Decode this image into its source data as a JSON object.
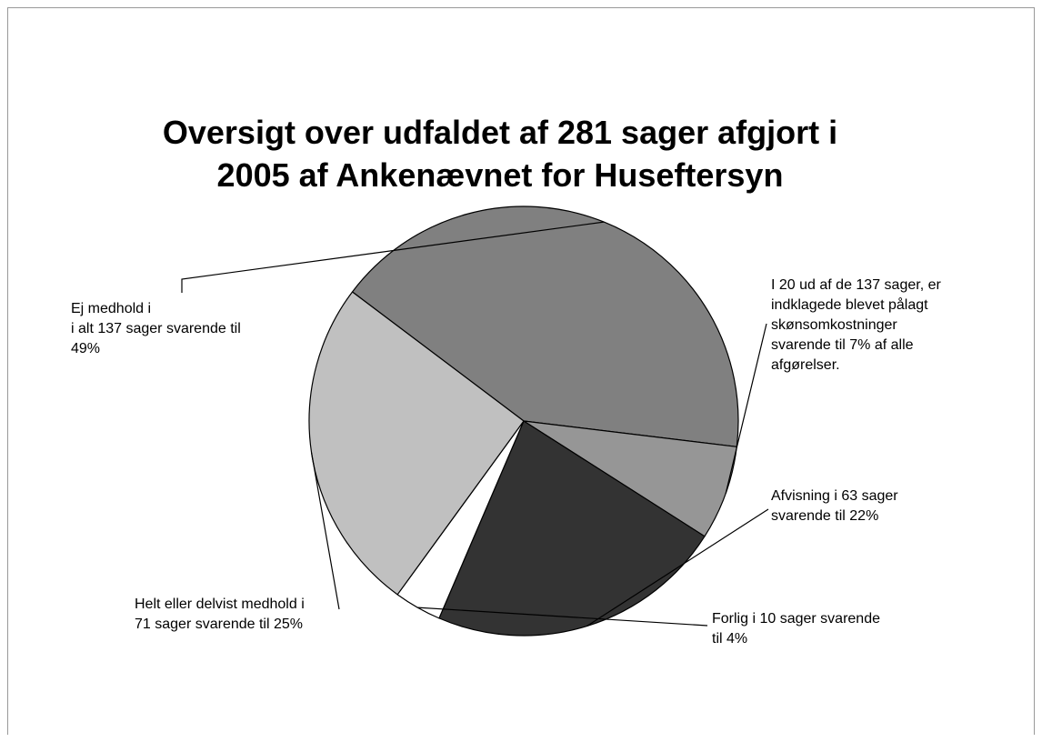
{
  "chart_data": {
    "type": "pie",
    "title_lines": [
      "Oversigt over udfaldet af 281 sager afgjort i",
      "2005 af Ankenævnet for Huseftersyn"
    ],
    "slices": [
      {
        "name": "Ej medhold",
        "value": 117,
        "color": "#808080",
        "label_lines": [
          "Ej medhold i",
          "i alt 137 sager svarende til",
          "49%"
        ]
      },
      {
        "name": "Skønsomkostninger",
        "value": 20,
        "color": "#969696",
        "label_lines": [
          "I 20 ud af de 137 sager, er",
          "indklagede blevet pålagt",
          "skønsomkostninger",
          "svarende til 7% af alle",
          "afgørelser."
        ]
      },
      {
        "name": "Afvisning",
        "value": 63,
        "color": "#333333",
        "label_lines": [
          "Afvisning i 63 sager",
          "svarende til 22%"
        ]
      },
      {
        "name": "Forlig",
        "value": 10,
        "color": "#ffffff",
        "label_lines": [
          "Forlig i 10 sager svarende",
          "til 4%"
        ]
      },
      {
        "name": "Helt eller delvist medhold",
        "value": 71,
        "color": "#c0c0c0",
        "label_lines": [
          "Helt eller delvist medhold i",
          "71 sager svarende til 25%"
        ]
      }
    ]
  }
}
